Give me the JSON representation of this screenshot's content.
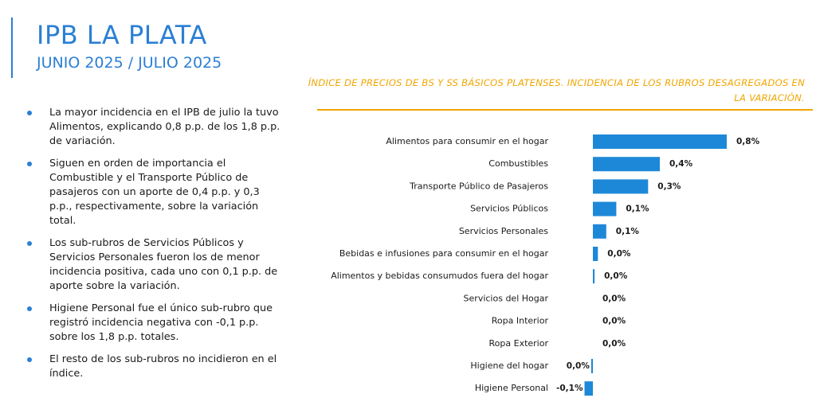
{
  "header": {
    "title": "IPB LA PLATA",
    "subtitle": "JUNIO 2025 / JULIO 2025"
  },
  "bullets": [
    "La mayor incidencia en el IPB de julio la tuvo Alimentos, explicando 0,8 p.p. de los 1,8 p.p. de variación.",
    "Siguen en orden de importancia el Combustible y el Transporte Público de pasajeros con un aporte de 0,4 p.p. y 0,3 p.p., respectivamente, sobre la variación total.",
    "Los sub-rubros de Servicios Públicos y Servicios Personales fueron los de menor incidencia positiva, cada uno con 0,1 p.p. de aporte sobre la variación.",
    "Higiene Personal fue el único sub-rubro que registró incidencia negativa con -0,1 p.p. sobre los 1,8 p.p. totales.",
    "El resto de los sub-rubros no incidieron en el índice."
  ],
  "colors": {
    "accent": "#2b7fd4",
    "bar": "#1e88d8",
    "chart_title": "#f0a500"
  },
  "chart_data": {
    "type": "bar",
    "orientation": "horizontal",
    "title": "ÍNDICE DE PRECIOS DE BS Y SS BÁSICOS PLATENSES. INCIDENCIA DE LOS RUBROS DESAGREGADOS EN LA VARIACIÓN.",
    "categories": [
      "Alimentos para consumir en el hogar",
      "Combustibles",
      "Transporte Público de Pasajeros",
      "Servicios Públicos",
      "Servicios Personales",
      "Bebidas e infusiones para consumir en el hogar",
      "Alimentos y bebidas consumudos fuera del hogar",
      "Servicios del Hogar",
      "Ropa Interior",
      "Ropa Exterior",
      "Higiene del hogar",
      "Higiene Personal"
    ],
    "values": [
      0.8,
      0.4,
      0.33,
      0.14,
      0.08,
      0.03,
      0.01,
      0.0,
      0.0,
      0.0,
      -0.01,
      -0.05
    ],
    "value_labels": [
      "0,8%",
      "0,4%",
      "0,3%",
      "0,1%",
      "0,1%",
      "0,0%",
      "0,0%",
      "0,0%",
      "0,0%",
      "0,0%",
      "0,0%",
      "-0,1%"
    ],
    "xlim": [
      -0.1,
      0.9
    ],
    "grid": false,
    "legend": "none"
  }
}
